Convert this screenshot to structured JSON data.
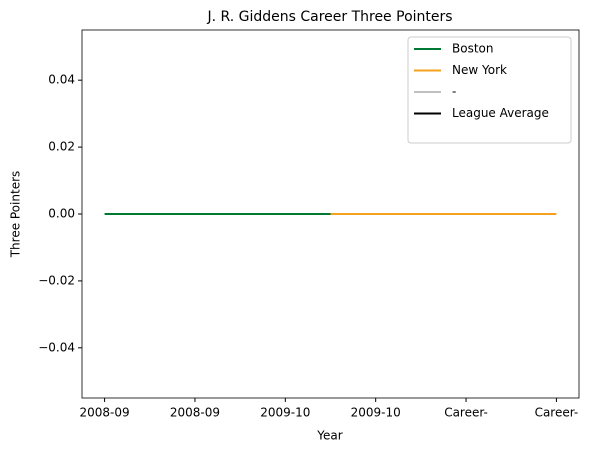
{
  "chart_data": {
    "type": "line",
    "title": "J. R. Giddens Career Three Pointers",
    "xlabel": "Year",
    "ylabel": "Three Pointers",
    "xlim": [
      -0.25,
      5.25
    ],
    "xticks": [
      {
        "value": 0,
        "label": "2008-09"
      },
      {
        "value": 1,
        "label": "2008-09"
      },
      {
        "value": 2,
        "label": "2009-10"
      },
      {
        "value": 3,
        "label": "2009-10"
      },
      {
        "value": 4,
        "label": "Career-"
      },
      {
        "value": 5,
        "label": "Career-"
      }
    ],
    "ylim": [
      -0.055,
      0.055
    ],
    "yticks": [
      {
        "value": -0.04,
        "label": "−0.04"
      },
      {
        "value": -0.02,
        "label": "−0.02"
      },
      {
        "value": 0,
        "label": "0.00"
      },
      {
        "value": 0.02,
        "label": "0.02"
      },
      {
        "value": 0.04,
        "label": "0.04"
      }
    ],
    "legend": "upper right",
    "series": [
      {
        "name": "Boston",
        "color": "#007a33",
        "x": [
          0,
          2.5
        ],
        "values": [
          0,
          0
        ]
      },
      {
        "name": "New York",
        "color": "#f5a01e",
        "x": [
          2.5,
          5
        ],
        "values": [
          0,
          0
        ]
      },
      {
        "name": "-",
        "color": "#c0c0c0",
        "x": [],
        "values": []
      },
      {
        "name": "League Average",
        "color": "#000000",
        "x": [],
        "values": []
      }
    ]
  }
}
